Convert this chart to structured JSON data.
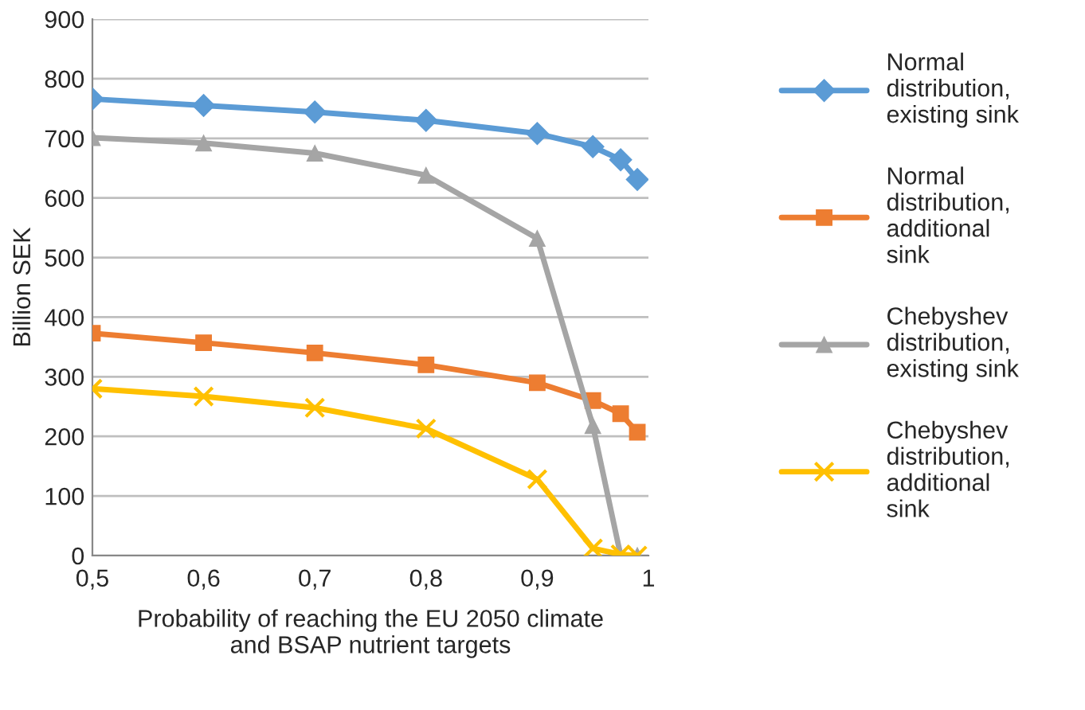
{
  "chart_data": {
    "type": "line",
    "xlabel": "Probability of reaching the EU 2050 climate and BSAP nutrient targets",
    "ylabel": "Billion SEK",
    "x": [
      0.5,
      0.6,
      0.7,
      0.8,
      0.9,
      0.95,
      0.975,
      0.99
    ],
    "series": [
      {
        "name": "Normal distribution, existing sink",
        "color": "#5b9bd5",
        "marker": "diamond",
        "values": [
          766,
          755,
          744,
          730,
          708,
          686,
          664,
          631
        ]
      },
      {
        "name": "Normal distribution, additional sink",
        "color": "#ed7d31",
        "marker": "square",
        "values": [
          373,
          357,
          340,
          320,
          290,
          260,
          238,
          207
        ]
      },
      {
        "name": "Chebyshev distribution, existing sink",
        "color": "#a5a5a5",
        "marker": "triangle",
        "values": [
          701,
          692,
          675,
          638,
          532,
          218,
          0,
          0
        ]
      },
      {
        "name": "Chebyshev distribution, additional sink",
        "color": "#ffc000",
        "marker": "cross",
        "values": [
          280,
          267,
          248,
          213,
          128,
          12,
          2,
          0
        ]
      }
    ],
    "xlim": [
      0.5,
      1.0
    ],
    "xticks": [
      {
        "value": 0.5,
        "label": "0,5"
      },
      {
        "value": 0.6,
        "label": "0,6"
      },
      {
        "value": 0.7,
        "label": "0,7"
      },
      {
        "value": 0.8,
        "label": "0,8"
      },
      {
        "value": 0.9,
        "label": "0,9"
      },
      1
    ],
    "ylim": [
      0,
      900
    ],
    "yticks": [
      0,
      100,
      200,
      300,
      400,
      500,
      600,
      700,
      800,
      900
    ],
    "grid": "y",
    "legend": "right",
    "line_style": "solid"
  }
}
